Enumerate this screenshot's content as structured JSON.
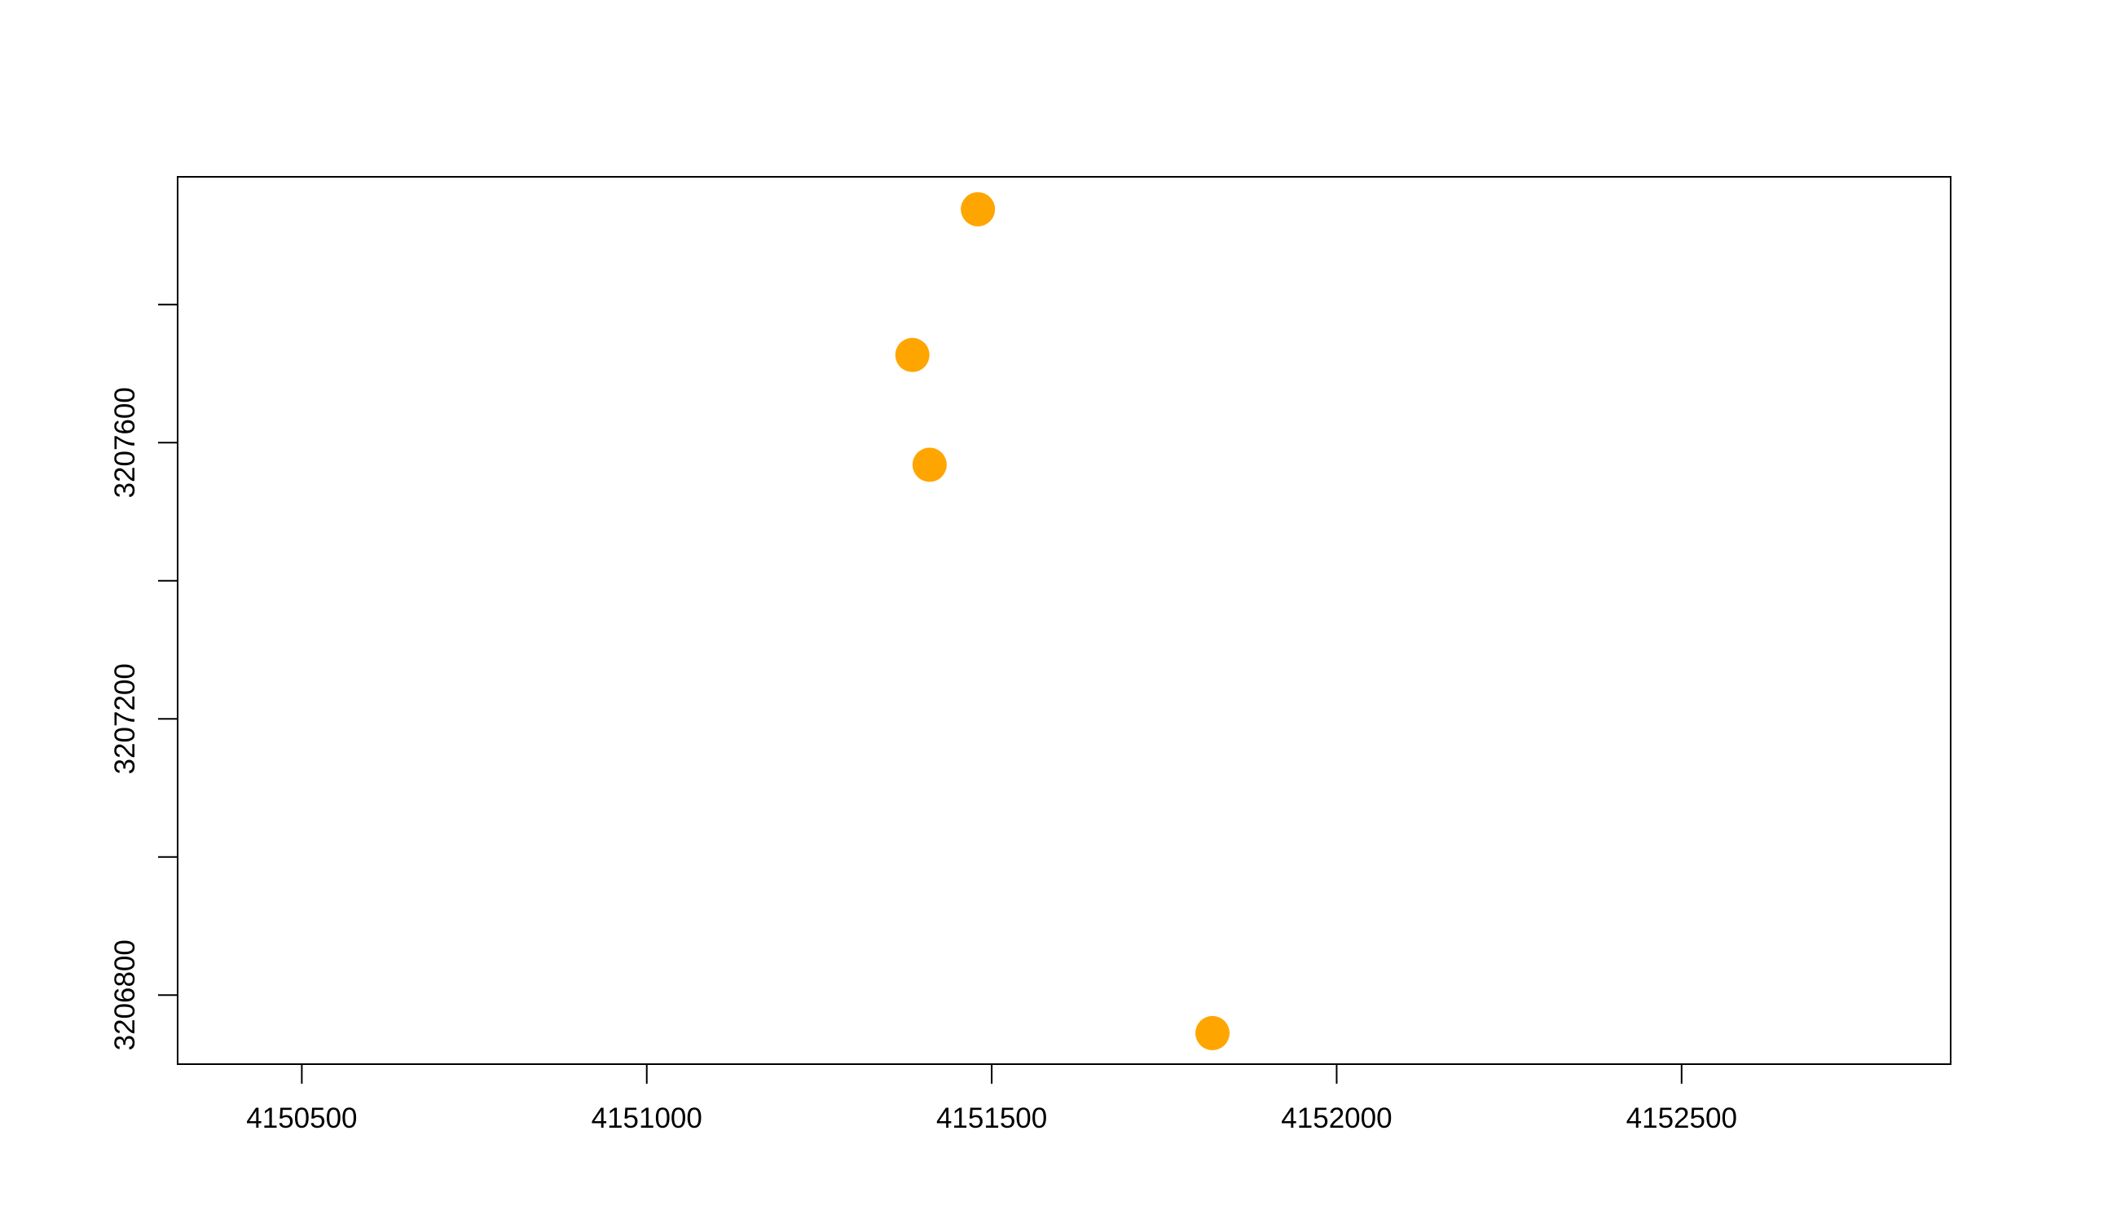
{
  "chart_data": {
    "type": "scatter",
    "title": "",
    "xlabel": "",
    "ylabel": "",
    "xlim": [
      4150320,
      4152890
    ],
    "ylim": [
      3206700,
      3207985
    ],
    "x_ticks": [
      4150500,
      4151000,
      4151500,
      4152000,
      4152500
    ],
    "x_tick_labels": [
      "4150500",
      "4151000",
      "4151500",
      "4152000",
      "4152500"
    ],
    "y_ticks": [
      3206800,
      3207000,
      3207200,
      3207400,
      3207600,
      3207800
    ],
    "y_tick_labels": [
      "3206800",
      "",
      "3207200",
      "",
      "3207600",
      ""
    ],
    "grid": false,
    "legend": false,
    "point_color": "#FFA500",
    "points": [
      {
        "x": 4151480,
        "y": 3207938
      },
      {
        "x": 4151385,
        "y": 3207727
      },
      {
        "x": 4151410,
        "y": 3207568
      },
      {
        "x": 4151820,
        "y": 3206745
      }
    ]
  }
}
